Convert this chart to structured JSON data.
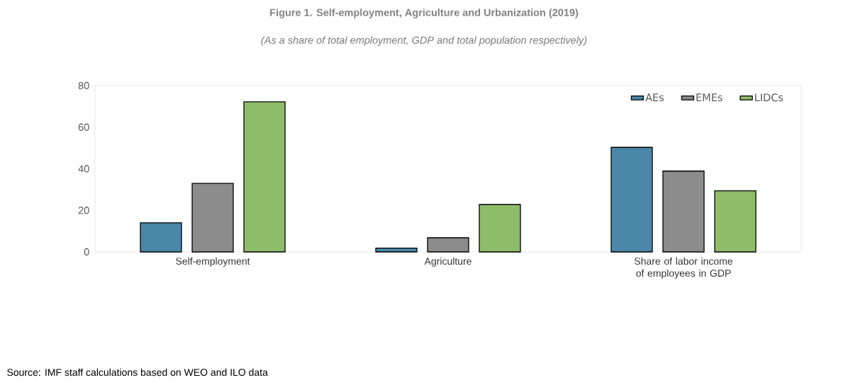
{
  "chart_data": {
    "type": "bar",
    "title": "Figure 1. Self-employment, Agriculture and Urbanization (2019)",
    "subtitle": "(As a share of total employment, GDP and total population respectively)",
    "categories": [
      "Self-employment",
      "Agriculture",
      "Share of labor income of employees in GDP"
    ],
    "series": [
      {
        "name": "AEs",
        "color": "#4a87a8",
        "values": [
          14,
          1.8,
          50.3
        ]
      },
      {
        "name": "EMEs",
        "color": "#8c8c8c",
        "values": [
          33,
          6.8,
          38.9
        ]
      },
      {
        "name": "LIDCs",
        "color": "#8fbc6b",
        "values": [
          72.2,
          22.8,
          29.4
        ]
      }
    ],
    "ylim": [
      0,
      80
    ],
    "yticks": [
      0,
      20,
      40,
      60,
      80
    ],
    "grid": false,
    "legend": "top right",
    "annotations": [
      "Source: IMF staff calculations based on WEO and ILO data"
    ]
  }
}
